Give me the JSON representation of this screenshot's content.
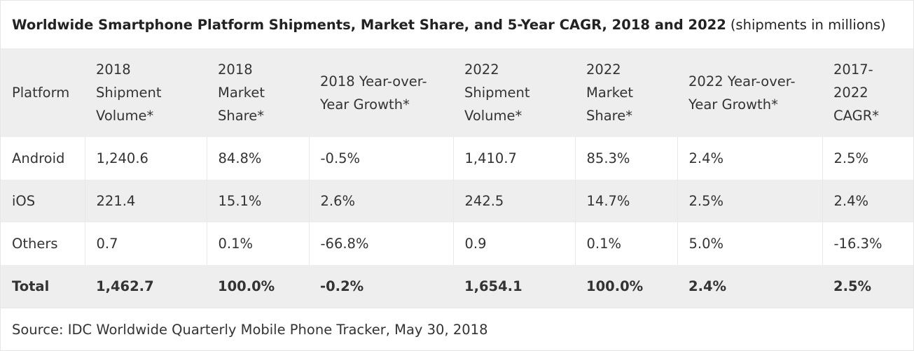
{
  "chart_data": {
    "type": "table",
    "title": "Worldwide Smartphone Platform Shipments, Market Share, and 5-Year CAGR, 2018 and 2022",
    "subtitle": "(shipments in millions)",
    "columns": [
      "Platform",
      "2018 Shipment Volume*",
      "2018 Market Share*",
      "2018 Year-over-Year Growth*",
      "2022 Shipment Volume*",
      "2022 Market Share*",
      "2022 Year-over-Year Growth*",
      "2017-2022 CAGR*"
    ],
    "rows": [
      [
        "Android",
        "1,240.6",
        "84.8%",
        "-0.5%",
        "1,410.7",
        "85.3%",
        "2.4%",
        "2.5%"
      ],
      [
        "iOS",
        "221.4",
        "15.1%",
        "2.6%",
        "242.5",
        "14.7%",
        "2.5%",
        "2.4%"
      ],
      [
        "Others",
        "0.7",
        "0.1%",
        "-66.8%",
        "0.9",
        "0.1%",
        "5.0%",
        "-16.3%"
      ]
    ],
    "total": [
      "Total",
      "1,462.7",
      "100.0%",
      "-0.2%",
      "1,654.1",
      "100.0%",
      "2.4%",
      "2.5%"
    ],
    "source": "Source: IDC Worldwide Quarterly Mobile Phone Tracker, May 30, 2018"
  }
}
